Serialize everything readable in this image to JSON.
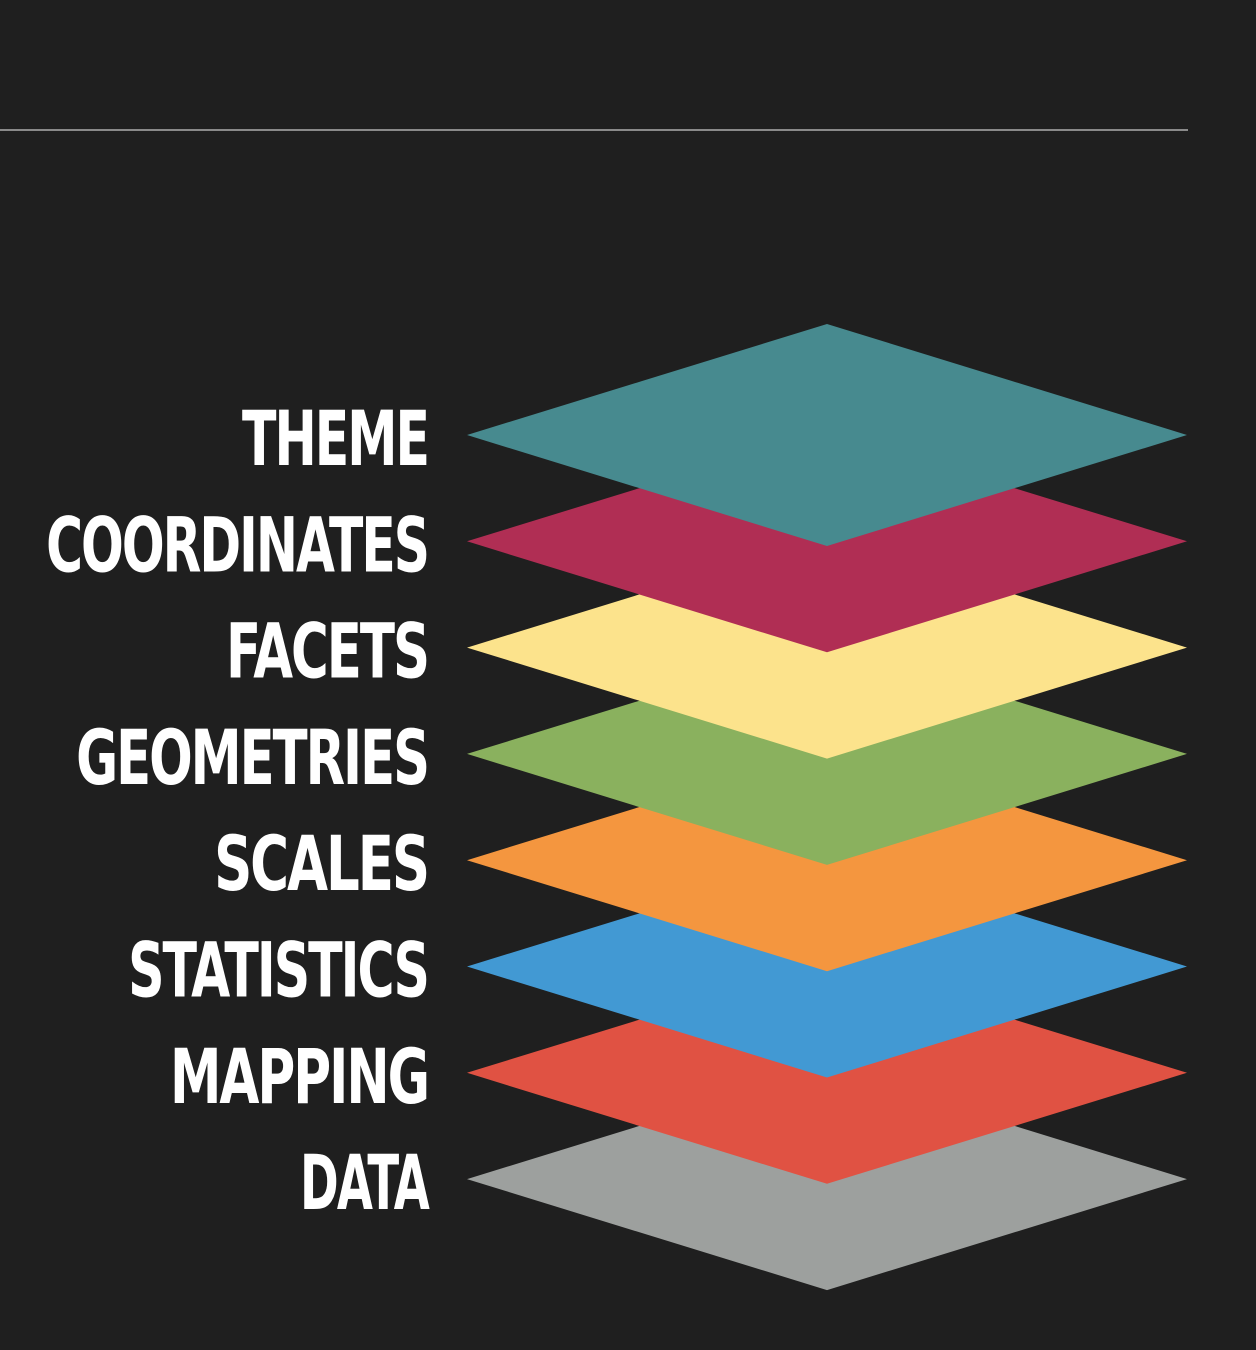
{
  "background_color": "#1f1f1f",
  "rule_color": "#8a8a8a",
  "label_color": "#ffffff",
  "layers": [
    {
      "label": "THEME",
      "color": "#478a8f"
    },
    {
      "label": "COORDINATES",
      "color": "#b02e54"
    },
    {
      "label": "FACETS",
      "color": "#fce38c"
    },
    {
      "label": "GEOMETRIES",
      "color": "#8ab15e"
    },
    {
      "label": "SCALES",
      "color": "#f4963f"
    },
    {
      "label": "STATISTICS",
      "color": "#4299d3"
    },
    {
      "label": "MAPPING",
      "color": "#e05243"
    },
    {
      "label": "DATA",
      "color": "#9da09e"
    }
  ]
}
